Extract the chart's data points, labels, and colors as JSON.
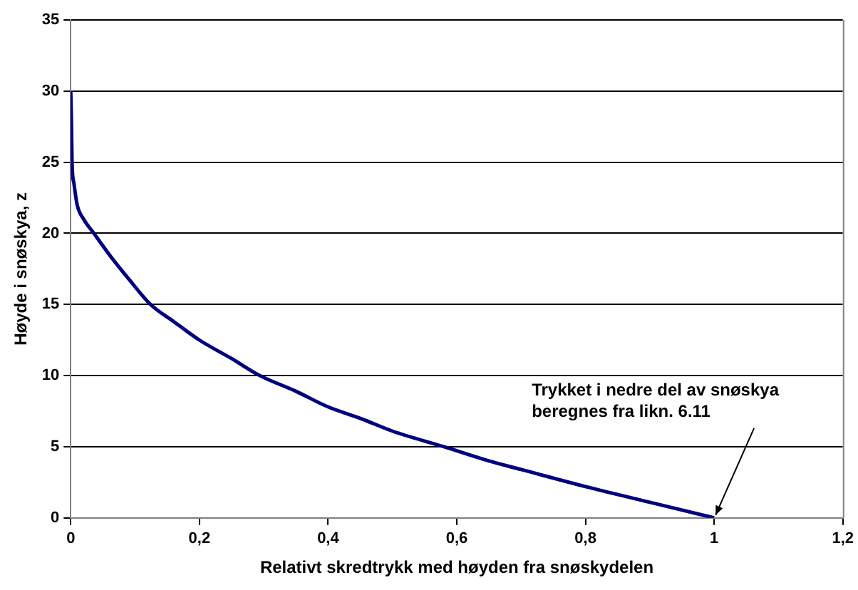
{
  "chart_data": {
    "type": "line",
    "xlabel": "Relativt skredtrykk med høyden fra snøskydelen",
    "ylabel": "Høyde i snøskya, z",
    "x": [
      0,
      0.001,
      0.002,
      0.005,
      0.01,
      0.02,
      0.036,
      0.06,
      0.09,
      0.124,
      0.16,
      0.2,
      0.25,
      0.294,
      0.35,
      0.4,
      0.45,
      0.5,
      0.58,
      0.65,
      0.7,
      0.8,
      0.9,
      1
    ],
    "series": [
      {
        "color": "#000080",
        "values": [
          30,
          28,
          25,
          23.5,
          22,
          21,
          20,
          18.5,
          16.8,
          15,
          13.8,
          12.5,
          11.2,
          10,
          8.9,
          7.8,
          7,
          6.1,
          5,
          4,
          3.4,
          2.2,
          1.1,
          0
        ]
      }
    ],
    "xlim": [
      0,
      1.2
    ],
    "xticks": [
      0,
      {
        "value": 0.2,
        "label": "0,2"
      },
      {
        "value": 0.4,
        "label": "0,4"
      },
      {
        "value": 0.6,
        "label": "0,6"
      },
      {
        "value": 0.8,
        "label": "0,8"
      },
      1,
      {
        "value": 1.2,
        "label": "1,2"
      }
    ],
    "ylim": [
      0,
      35
    ],
    "yticks": [
      0,
      5,
      10,
      15,
      20,
      25,
      30,
      35
    ],
    "grid": "y",
    "legend": false,
    "marker": "none",
    "line_style": "solid",
    "annotations": [
      {
        "text": "Trykket i nedre del av snøskya beregnes fra likn. 6.11",
        "x": 1,
        "y": 0
      }
    ]
  }
}
